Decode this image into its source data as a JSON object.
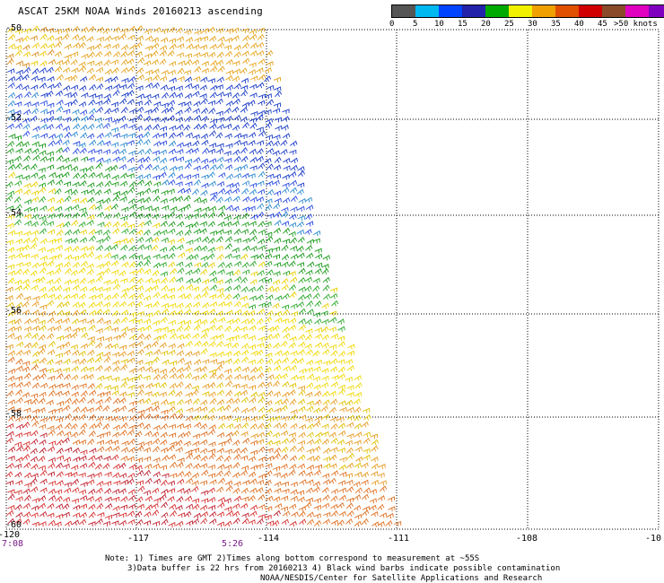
{
  "title": "ASCAT 25KM NOAA Winds 20160213 ascending",
  "legend": {
    "colors": [
      "#555555",
      "#00b8f0",
      "#0044ff",
      "#2222aa",
      "#00aa00",
      "#f0f000",
      "#f0a000",
      "#e05000",
      "#d00000",
      "#8a4a2a",
      "#e000c0",
      "#8000c0",
      "#4a0090"
    ],
    "labels": [
      "0",
      "5",
      "10",
      "15",
      "20",
      "25",
      "30",
      "35",
      "40",
      "45",
      ">50 knots"
    ]
  },
  "axes": {
    "lon_labels": [
      "-120",
      "-117",
      "-114",
      "-111",
      "-108",
      "-10"
    ],
    "lat_labels": [
      "-50",
      "-52",
      "-54",
      "-56",
      "-58",
      "-60"
    ]
  },
  "times": [
    "7:08",
    "5:26"
  ],
  "notes": {
    "line1": "Note: 1) Times are GMT 2)Times along bottom correspond to measurement at ~55S",
    "line2": "3)Data buffer is 22 hrs from 20160213 4) Black wind barbs indicate possible contamination",
    "line3": "NOAA/NESDIS/Center for Satellite Applications and Research"
  }
}
